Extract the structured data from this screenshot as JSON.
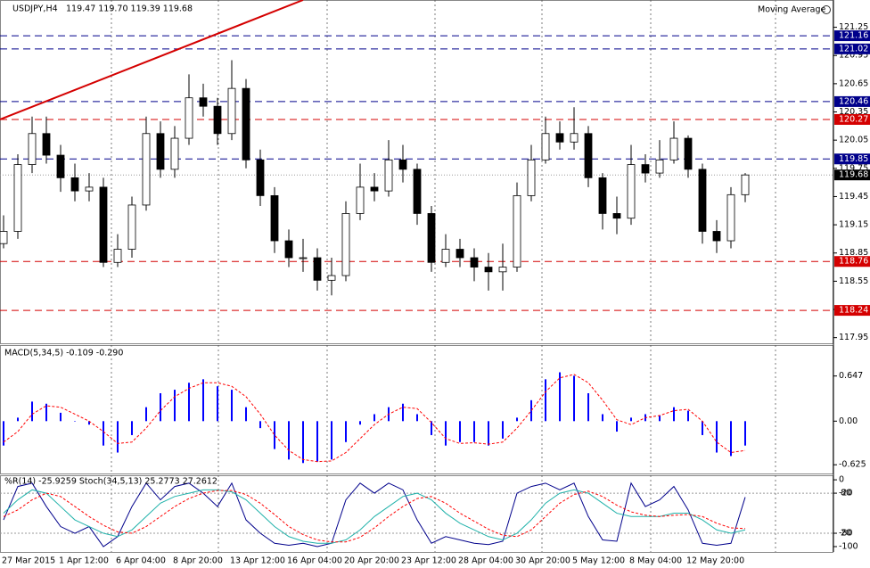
{
  "chart_data": [
    {
      "type": "candlestick",
      "title": "USDJPY,H4",
      "subtitle": "119.47 119.70 119.39 119.68",
      "indicator_label": "Moving Average",
      "categories": [
        "27 Mar 2015",
        null,
        null,
        null,
        "1 Apr 12:00",
        null,
        null,
        null,
        "6 Apr 04:00",
        null,
        null,
        null,
        "8 Apr 20:00",
        null,
        null,
        null,
        "13 Apr 12:00",
        null,
        null,
        null,
        "16 Apr 04:00",
        null,
        null,
        null,
        "20 Apr 20:00",
        null,
        null,
        null,
        "23 Apr 12:00",
        null,
        null,
        null,
        "28 Apr 04:00",
        null,
        null,
        null,
        "30 Apr 20:00",
        null,
        null,
        null,
        "5 May 12:00",
        null,
        null,
        null,
        "8 May 04:00",
        null,
        null,
        null,
        "12 May 20:00",
        null,
        null,
        null,
        null
      ],
      "open": [
        118.95,
        119.08,
        119.79,
        120.12,
        119.89,
        119.65,
        119.51,
        119.55,
        118.75,
        118.89,
        119.36,
        120.12,
        119.74,
        120.07,
        120.5,
        120.41,
        120.12,
        120.6,
        119.84,
        119.46,
        118.98,
        118.8,
        118.8,
        118.56,
        118.61,
        119.27,
        119.55,
        119.51,
        119.84,
        119.74,
        119.27,
        118.75,
        118.89,
        118.8,
        118.7,
        118.65,
        118.7,
        119.46,
        119.84,
        120.12,
        120.03,
        120.12,
        119.65,
        119.27,
        119.22,
        119.79,
        119.7,
        119.84,
        120.07,
        119.74,
        119.08,
        118.98,
        119.47
      ],
      "high": [
        119.25,
        119.9,
        120.3,
        120.3,
        120.0,
        119.8,
        119.7,
        119.65,
        119.05,
        119.45,
        120.3,
        120.25,
        120.2,
        120.75,
        120.65,
        120.5,
        120.9,
        120.7,
        119.95,
        119.55,
        119.1,
        119.0,
        118.9,
        118.8,
        119.4,
        119.8,
        119.7,
        120.05,
        120.0,
        119.8,
        119.35,
        119.05,
        119.0,
        118.9,
        118.85,
        118.95,
        119.6,
        120.0,
        120.3,
        120.25,
        120.4,
        120.2,
        119.7,
        119.45,
        120.0,
        119.9,
        120.05,
        120.25,
        120.1,
        119.8,
        119.2,
        119.55,
        119.7
      ],
      "low": [
        118.9,
        119.0,
        119.7,
        119.8,
        119.5,
        119.4,
        119.4,
        118.7,
        118.7,
        118.8,
        119.3,
        119.65,
        119.65,
        120.0,
        120.3,
        120.0,
        120.05,
        119.75,
        119.35,
        118.85,
        118.7,
        118.65,
        118.45,
        118.4,
        118.55,
        119.2,
        119.4,
        119.45,
        119.6,
        119.15,
        118.65,
        118.7,
        118.7,
        118.55,
        118.45,
        118.45,
        118.65,
        119.4,
        119.8,
        119.95,
        119.95,
        119.55,
        119.1,
        119.05,
        119.15,
        119.6,
        119.65,
        119.8,
        119.65,
        118.95,
        118.85,
        118.9,
        119.39
      ],
      "close": [
        119.08,
        119.79,
        120.12,
        119.89,
        119.65,
        119.51,
        119.55,
        118.75,
        118.89,
        119.36,
        120.12,
        119.74,
        120.07,
        120.5,
        120.41,
        120.12,
        120.6,
        119.84,
        119.46,
        118.98,
        118.8,
        118.8,
        118.56,
        118.61,
        119.27,
        119.55,
        119.51,
        119.84,
        119.74,
        119.27,
        118.75,
        118.89,
        118.8,
        118.7,
        118.65,
        118.7,
        119.46,
        119.84,
        120.12,
        120.03,
        120.12,
        119.65,
        119.27,
        119.22,
        119.79,
        119.7,
        119.84,
        120.07,
        119.74,
        119.08,
        118.98,
        119.47,
        119.68
      ],
      "bull_color": "#ffffff",
      "bear_color": "#000000",
      "ylim": [
        117.89,
        121.54
      ],
      "yticks": [
        121.25,
        120.95,
        120.65,
        120.35,
        120.05,
        119.75,
        119.45,
        119.15,
        118.85,
        118.55,
        118.25,
        117.95
      ],
      "levels": [
        {
          "value": 121.16,
          "color": "#00008b"
        },
        {
          "value": 121.02,
          "color": "#00008b"
        },
        {
          "value": 120.46,
          "color": "#00008b"
        },
        {
          "value": 120.27,
          "color": "#d40000"
        },
        {
          "value": 119.85,
          "color": "#00008b"
        },
        {
          "value": 118.76,
          "color": "#d40000"
        },
        {
          "value": 118.24,
          "color": "#d40000"
        }
      ],
      "last_price": 119.68,
      "trendline": {
        "x": [
          0,
          21
        ],
        "y": [
          120.27,
          121.54
        ],
        "color": "#d40000"
      }
    },
    {
      "type": "bar",
      "title": "MACD(5,34,5) -0.109 -0.290",
      "series": [
        {
          "type": "bar",
          "color": "#0000ff",
          "values": [
            -0.35,
            0.05,
            0.28,
            0.25,
            0.12,
            0.0,
            -0.05,
            -0.35,
            -0.45,
            -0.2,
            0.2,
            0.4,
            0.45,
            0.55,
            0.6,
            0.5,
            0.45,
            0.2,
            -0.1,
            -0.4,
            -0.55,
            -0.6,
            -0.58,
            -0.55,
            -0.3,
            -0.05,
            0.1,
            0.2,
            0.25,
            0.1,
            -0.2,
            -0.35,
            -0.3,
            -0.3,
            -0.35,
            -0.25,
            0.05,
            0.3,
            0.6,
            0.7,
            0.65,
            0.4,
            0.1,
            -0.15,
            0.05,
            0.1,
            0.08,
            0.2,
            0.15,
            -0.2,
            -0.45,
            -0.5,
            -0.35
          ]
        },
        {
          "type": "line",
          "color": "#ff0000",
          "dashed": true,
          "values": [
            -0.3,
            -0.15,
            0.1,
            0.22,
            0.2,
            0.1,
            0.0,
            -0.15,
            -0.32,
            -0.3,
            -0.1,
            0.15,
            0.35,
            0.47,
            0.55,
            0.55,
            0.5,
            0.35,
            0.1,
            -0.2,
            -0.42,
            -0.55,
            -0.58,
            -0.57,
            -0.45,
            -0.25,
            -0.05,
            0.1,
            0.2,
            0.18,
            -0.02,
            -0.25,
            -0.32,
            -0.31,
            -0.33,
            -0.3,
            -0.1,
            0.15,
            0.42,
            0.62,
            0.67,
            0.55,
            0.3,
            0.02,
            -0.05,
            0.05,
            0.08,
            0.15,
            0.17,
            0.0,
            -0.3,
            -0.45,
            -0.42
          ]
        }
      ],
      "ylim": [
        -0.75,
        1.09
      ],
      "yticks": [
        0.647,
        {
          "value": 0,
          "label": "0.00"
        },
        -0.625
      ]
    },
    {
      "type": "line",
      "title": "%R(14) -25.9259 Stoch(34,5,13) 25.2773 27.2612",
      "series": [
        {
          "color": "#00008b",
          "values": [
            -60,
            -10,
            -5,
            -40,
            -70,
            -80,
            -70,
            -100,
            -85,
            -40,
            -5,
            -30,
            -10,
            -5,
            -20,
            -40,
            -5,
            -60,
            -80,
            -95,
            -98,
            -95,
            -100,
            -95,
            -30,
            -5,
            -20,
            -5,
            -15,
            -60,
            -95,
            -85,
            -90,
            -95,
            -97,
            -92,
            -20,
            -10,
            -5,
            -15,
            -5,
            -55,
            -90,
            -92,
            -5,
            -40,
            -30,
            -10,
            -45,
            -95,
            -98,
            -95,
            -26
          ]
        },
        {
          "color": "#20b2aa",
          "axis": "y2",
          "values": [
            50,
            70,
            85,
            80,
            60,
            40,
            30,
            20,
            15,
            25,
            45,
            65,
            75,
            80,
            85,
            85,
            82,
            70,
            50,
            30,
            15,
            8,
            5,
            5,
            10,
            25,
            45,
            60,
            75,
            80,
            70,
            50,
            35,
            25,
            15,
            10,
            20,
            40,
            65,
            80,
            85,
            80,
            65,
            50,
            45,
            45,
            45,
            50,
            50,
            40,
            25,
            20,
            25
          ]
        },
        {
          "color": "#ff0000",
          "axis": "y2",
          "dashed": true,
          "values": [
            45,
            55,
            70,
            80,
            75,
            60,
            45,
            32,
            22,
            20,
            30,
            45,
            60,
            72,
            80,
            84,
            84,
            78,
            65,
            48,
            30,
            18,
            10,
            7,
            7,
            14,
            28,
            45,
            60,
            72,
            75,
            65,
            50,
            38,
            26,
            17,
            15,
            25,
            45,
            65,
            78,
            83,
            75,
            62,
            52,
            47,
            45,
            47,
            48,
            45,
            35,
            28,
            27
          ]
        }
      ],
      "ylim": [
        -108,
        6.8
      ],
      "yticks": [
        0,
        -20,
        -80,
        -100
      ],
      "y2lim": [
        -8,
        106.8
      ],
      "y2ticks": [
        80,
        20
      ]
    }
  ]
}
